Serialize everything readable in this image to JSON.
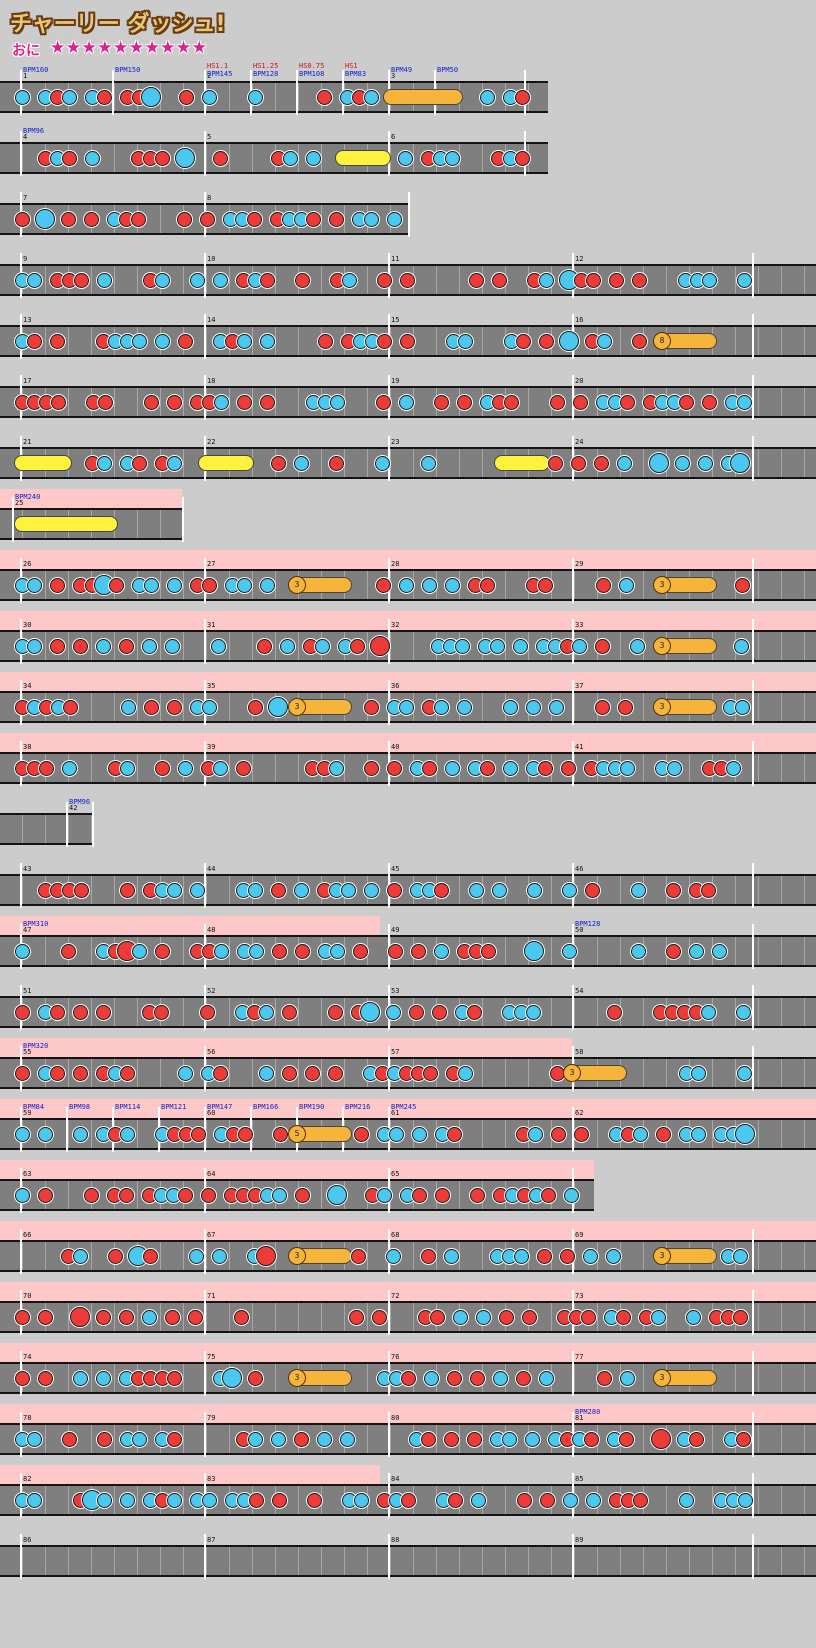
{
  "header": {
    "song_title": "チャーリー ダッシュ!",
    "difficulty_label": "おに",
    "stars": "★★★★★★★★★★"
  },
  "colors": {
    "don": "#ef3b37",
    "ka": "#4ac8f0",
    "drumroll": "#fff23c",
    "balloon": "#f7b43a",
    "gogo": "#ffc8c8",
    "lane": "#7f7f7f",
    "bpm_text": "#1020d0",
    "hs_text": "#d01010"
  },
  "legend": {
    "icons": [
      "don-note-icon",
      "ka-note-icon",
      "big-don-icon",
      "big-ka-icon",
      "drumroll-icon",
      "balloon-icon"
    ]
  },
  "rows": [
    {
      "measures": [
        "1",
        "",
        "2",
        "",
        "",
        "",
        "3",
        ""
      ],
      "events": [
        {
          "t": "BPM160",
          "k": "bpm",
          "m": 0
        },
        {
          "t": "BPM150",
          "k": "bpm",
          "m": 1
        },
        {
          "t": "HS1.1",
          "k": "hs",
          "m": 2
        },
        {
          "t": "BPM145",
          "k": "bpm",
          "m": 2
        },
        {
          "t": "HS1.25",
          "k": "hs",
          "m": 3
        },
        {
          "t": "BPM128",
          "k": "bpm",
          "m": 3
        },
        {
          "t": "HS0.75",
          "k": "hs",
          "m": 4
        },
        {
          "t": "BPM108",
          "k": "bpm",
          "m": 4
        },
        {
          "t": "HS1",
          "k": "hs",
          "m": 5
        },
        {
          "t": "BPM83",
          "k": "bpm",
          "m": 5
        },
        {
          "t": "BPM49",
          "k": "bpm",
          "m": 6
        },
        {
          "t": "BPM50",
          "k": "bpm",
          "m": 7
        }
      ]
    },
    {
      "measures": [
        "4",
        "5",
        "6"
      ],
      "events": [
        {
          "t": "BPM96",
          "k": "bpm",
          "m": 0
        }
      ]
    },
    {
      "measures": [
        "7",
        "8"
      ],
      "events": []
    },
    {
      "measures": [
        "9",
        "10",
        "11",
        "12"
      ],
      "events": []
    },
    {
      "measures": [
        "13",
        "14",
        "15",
        "16"
      ],
      "events": [],
      "balloon": "8"
    },
    {
      "measures": [
        "17",
        "18",
        "19",
        "20"
      ],
      "events": []
    },
    {
      "measures": [
        "21",
        "22",
        "23",
        "24"
      ],
      "events": []
    },
    {
      "measures": [
        "25"
      ],
      "events": [
        {
          "t": "BPM240",
          "k": "bpm",
          "m": 0
        }
      ]
    },
    {
      "measures": [
        "26",
        "27",
        "28",
        "29"
      ],
      "events": [],
      "balloon": "3"
    },
    {
      "measures": [
        "30",
        "31",
        "32",
        "33"
      ],
      "events": [],
      "balloon": "3"
    },
    {
      "measures": [
        "34",
        "35",
        "36",
        "37"
      ],
      "events": [],
      "balloon": "3"
    },
    {
      "measures": [
        "38",
        "39",
        "40",
        "41"
      ],
      "events": []
    },
    {
      "measures": [
        "42"
      ],
      "events": [
        {
          "t": "BPM96",
          "k": "bpm",
          "m": 0
        }
      ]
    },
    {
      "measures": [
        "43",
        "44",
        "45",
        "46"
      ],
      "events": []
    },
    {
      "measures": [
        "47",
        "48",
        "49",
        "50"
      ],
      "events": [
        {
          "t": "BPM310",
          "k": "bpm",
          "m": 0
        },
        {
          "t": "BPM128",
          "k": "bpm",
          "m": 3
        }
      ]
    },
    {
      "measures": [
        "51",
        "52",
        "53",
        "54"
      ],
      "events": []
    },
    {
      "measures": [
        "55",
        "56",
        "57",
        "58"
      ],
      "events": [
        {
          "t": "BPM320",
          "k": "bpm",
          "m": 0
        }
      ],
      "balloon": "3"
    },
    {
      "measures": [
        "59",
        "",
        "",
        "",
        "60",
        "",
        "",
        "",
        "61",
        "62"
      ],
      "events": [
        {
          "t": "BPM84",
          "k": "bpm",
          "m": 0
        },
        {
          "t": "BPM98",
          "k": "bpm",
          "m": 1
        },
        {
          "t": "BPM114",
          "k": "bpm",
          "m": 2
        },
        {
          "t": "BPM121",
          "k": "bpm",
          "m": 3
        },
        {
          "t": "BPM147",
          "k": "bpm",
          "m": 4
        },
        {
          "t": "BPM166",
          "k": "bpm",
          "m": 5
        },
        {
          "t": "BPM190",
          "k": "bpm",
          "m": 6
        },
        {
          "t": "BPM216",
          "k": "bpm",
          "m": 7
        },
        {
          "t": "BPM245",
          "k": "bpm",
          "m": 8
        }
      ],
      "balloon": "5"
    },
    {
      "measures": [
        "63",
        "64",
        "65"
      ],
      "events": []
    },
    {
      "measures": [
        "66",
        "67",
        "68",
        "69"
      ],
      "events": [],
      "balloon": "3"
    },
    {
      "measures": [
        "70",
        "71",
        "72",
        "73"
      ],
      "events": []
    },
    {
      "measures": [
        "74",
        "75",
        "76",
        "77"
      ],
      "events": [],
      "balloon": "3"
    },
    {
      "measures": [
        "78",
        "79",
        "80",
        "81"
      ],
      "events": [
        {
          "t": "BPM280",
          "k": "bpm",
          "m": 3
        }
      ]
    },
    {
      "measures": [
        "82",
        "83",
        "84",
        "85"
      ],
      "events": []
    },
    {
      "measures": [
        "86",
        "87",
        "88",
        "89"
      ],
      "events": []
    }
  ]
}
